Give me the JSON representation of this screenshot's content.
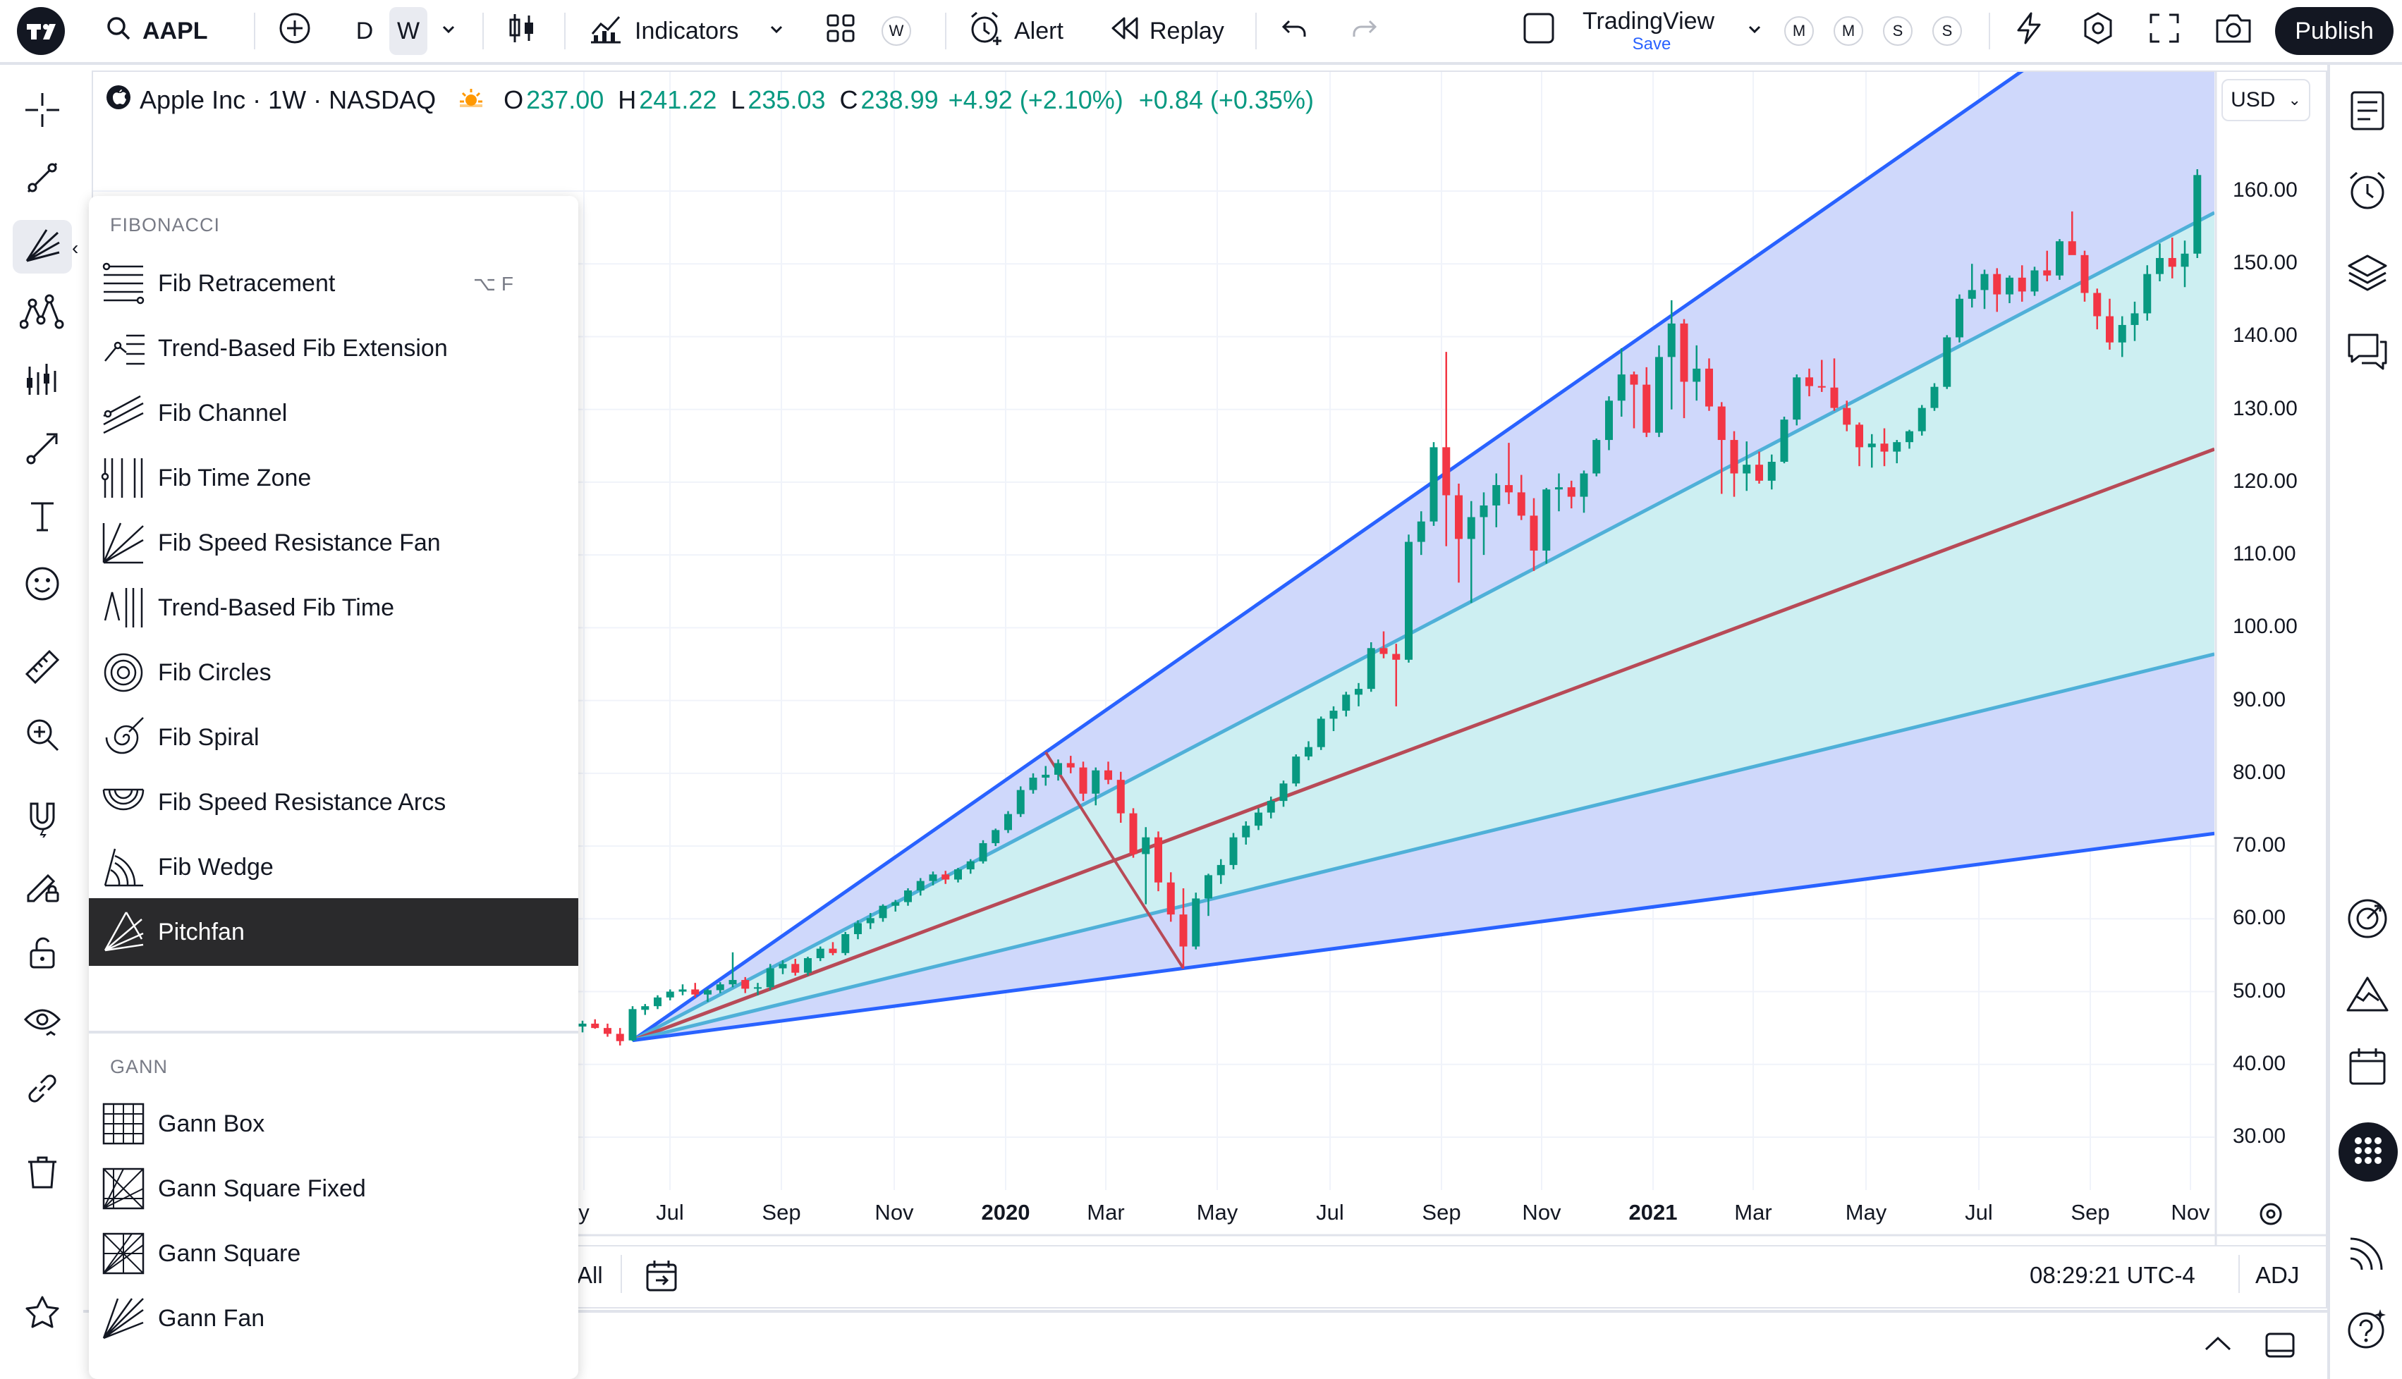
{
  "toolbar": {
    "symbol": "AAPL",
    "interval_d": "D",
    "interval_w": "W",
    "indicators_label": "Indicators",
    "templates_badge": "W",
    "alert_label": "Alert",
    "replay_label": "Replay",
    "layout_name": "TradingView",
    "layout_save": "Save",
    "watch_m1": "M",
    "watch_m2": "M",
    "watch_s1": "S",
    "watch_s2": "S",
    "publish_label": "Publish"
  },
  "legend": {
    "title": "Apple Inc · 1W · NASDAQ",
    "o_key": "O",
    "o": "237.00",
    "h_key": "H",
    "h": "241.22",
    "l_key": "L",
    "l": "235.03",
    "c_key": "C",
    "c": "238.99",
    "change": "+4.92 (+2.10%)",
    "change2": "+0.84 (+0.35%)"
  },
  "currency": "USD",
  "menu": {
    "fib_header": "FIBONACCI",
    "gann_header": "GANN",
    "fib_items": [
      {
        "label": "Fib Retracement",
        "shortcut": "⌥ F",
        "icon": "fib-retracement-icon"
      },
      {
        "label": "Trend-Based Fib Extension",
        "icon": "trend-fib-extension-icon"
      },
      {
        "label": "Fib Channel",
        "icon": "fib-channel-icon"
      },
      {
        "label": "Fib Time Zone",
        "icon": "fib-time-zone-icon"
      },
      {
        "label": "Fib Speed Resistance Fan",
        "icon": "fib-speed-fan-icon"
      },
      {
        "label": "Trend-Based Fib Time",
        "icon": "trend-fib-time-icon"
      },
      {
        "label": "Fib Circles",
        "icon": "fib-circles-icon"
      },
      {
        "label": "Fib Spiral",
        "icon": "fib-spiral-icon"
      },
      {
        "label": "Fib Speed Resistance Arcs",
        "icon": "fib-arcs-icon"
      },
      {
        "label": "Fib Wedge",
        "icon": "fib-wedge-icon"
      },
      {
        "label": "Pitchfan",
        "icon": "pitchfan-icon",
        "selected": true
      }
    ],
    "gann_items": [
      {
        "label": "Gann Box",
        "icon": "gann-box-icon"
      },
      {
        "label": "Gann Square Fixed",
        "icon": "gann-square-fixed-icon"
      },
      {
        "label": "Gann Square",
        "icon": "gann-square-icon"
      },
      {
        "label": "Gann Fan",
        "icon": "gann-fan-icon"
      }
    ]
  },
  "price_axis": [
    "160.00",
    "150.00",
    "140.00",
    "130.00",
    "120.00",
    "110.00",
    "100.00",
    "90.00",
    "80.00",
    "70.00",
    "60.00",
    "50.00",
    "40.00",
    "30.00"
  ],
  "time_axis": [
    {
      "label": "y",
      "bold": false
    },
    {
      "label": "Jul",
      "bold": false
    },
    {
      "label": "Sep",
      "bold": false
    },
    {
      "label": "Nov",
      "bold": false
    },
    {
      "label": "2020",
      "bold": true
    },
    {
      "label": "Mar",
      "bold": false
    },
    {
      "label": "May",
      "bold": false
    },
    {
      "label": "Jul",
      "bold": false
    },
    {
      "label": "Sep",
      "bold": false
    },
    {
      "label": "Nov",
      "bold": false
    },
    {
      "label": "2021",
      "bold": true
    },
    {
      "label": "Mar",
      "bold": false
    },
    {
      "label": "May",
      "bold": false
    },
    {
      "label": "Jul",
      "bold": false
    },
    {
      "label": "Sep",
      "bold": false
    },
    {
      "label": "Nov",
      "bold": false
    }
  ],
  "bottom": {
    "range_all": "All",
    "clock": "08:29:21 UTC-4",
    "adj": "ADJ"
  },
  "colors": {
    "up": "#089981",
    "down": "#f23645",
    "fan_outer": "#2962ff",
    "fan_mid": "#4fb0d8",
    "fan_median": "#b84a57",
    "fill_outer": "#cfd8fb",
    "fill_inner": "#cdeff2"
  },
  "chart_data": {
    "type": "candlestick",
    "symbol": "AAPL",
    "interval": "1W",
    "ylim": [
      27,
      172
    ],
    "candles": [
      [
        45.2,
        46.0,
        44.4,
        45.6
      ],
      [
        45.6,
        46.2,
        44.9,
        45.0
      ],
      [
        45.0,
        45.6,
        43.8,
        44.2
      ],
      [
        44.2,
        45.0,
        42.6,
        43.2
      ],
      [
        43.3,
        48.0,
        43.2,
        47.6
      ],
      [
        47.5,
        48.3,
        46.8,
        48.0
      ],
      [
        48.0,
        49.5,
        47.6,
        49.2
      ],
      [
        49.2,
        50.3,
        48.8,
        50.0
      ],
      [
        50.0,
        51.0,
        49.5,
        50.3
      ],
      [
        50.3,
        51.2,
        49.2,
        49.6
      ],
      [
        49.6,
        50.4,
        48.6,
        50.2
      ],
      [
        50.2,
        51.3,
        49.8,
        51.0
      ],
      [
        51.0,
        55.4,
        50.6,
        51.6
      ],
      [
        51.6,
        52.0,
        49.8,
        50.4
      ],
      [
        50.4,
        51.2,
        49.5,
        50.6
      ],
      [
        50.6,
        53.8,
        50.2,
        53.2
      ],
      [
        53.2,
        54.3,
        52.4,
        53.8
      ],
      [
        53.8,
        54.5,
        52.2,
        52.6
      ],
      [
        52.6,
        54.8,
        52.2,
        54.6
      ],
      [
        54.6,
        56.2,
        54.2,
        55.9
      ],
      [
        55.9,
        56.8,
        55.0,
        55.3
      ],
      [
        55.3,
        58.2,
        55.0,
        57.9
      ],
      [
        57.9,
        59.8,
        57.2,
        59.4
      ],
      [
        59.4,
        60.8,
        58.6,
        60.1
      ],
      [
        60.1,
        62.0,
        59.6,
        61.8
      ],
      [
        61.8,
        62.6,
        61.0,
        62.3
      ],
      [
        62.3,
        64.2,
        61.8,
        63.9
      ],
      [
        63.9,
        65.6,
        63.2,
        65.2
      ],
      [
        65.2,
        66.5,
        64.6,
        66.1
      ],
      [
        66.1,
        66.6,
        64.8,
        65.4
      ],
      [
        65.4,
        67.0,
        65.0,
        66.8
      ],
      [
        66.8,
        68.2,
        66.2,
        67.9
      ],
      [
        67.9,
        70.8,
        67.6,
        70.4
      ],
      [
        70.4,
        72.4,
        70.0,
        72.2
      ],
      [
        72.2,
        74.8,
        71.8,
        74.4
      ],
      [
        74.4,
        78.2,
        74.0,
        77.7
      ],
      [
        77.7,
        80.0,
        77.2,
        79.4
      ],
      [
        79.4,
        81.0,
        78.3,
        79.8
      ],
      [
        79.8,
        81.9,
        79.0,
        81.4
      ],
      [
        81.4,
        82.4,
        80.0,
        80.8
      ],
      [
        80.8,
        81.6,
        76.2,
        77.2
      ],
      [
        77.2,
        80.8,
        75.6,
        80.4
      ],
      [
        80.4,
        81.6,
        78.5,
        79.1
      ],
      [
        79.1,
        80.2,
        73.2,
        74.5
      ],
      [
        74.5,
        75.2,
        68.4,
        68.9
      ],
      [
        68.9,
        72.6,
        62.0,
        71.2
      ],
      [
        71.2,
        72.0,
        63.8,
        65.0
      ],
      [
        65.0,
        66.4,
        59.6,
        60.6
      ],
      [
        60.6,
        64.2,
        53.2,
        56.2
      ],
      [
        56.2,
        63.6,
        55.8,
        62.8
      ],
      [
        62.8,
        66.2,
        60.4,
        66.0
      ],
      [
        66.0,
        68.2,
        64.8,
        67.4
      ],
      [
        67.4,
        71.8,
        66.8,
        71.2
      ],
      [
        71.2,
        73.4,
        70.2,
        72.8
      ],
      [
        72.8,
        75.2,
        72.2,
        74.6
      ],
      [
        74.6,
        76.8,
        73.8,
        76.2
      ],
      [
        76.2,
        79.0,
        75.4,
        78.6
      ],
      [
        78.6,
        82.6,
        78.2,
        82.3
      ],
      [
        82.3,
        84.4,
        81.8,
        83.6
      ],
      [
        83.6,
        87.8,
        83.2,
        87.5
      ],
      [
        87.5,
        89.2,
        85.8,
        88.6
      ],
      [
        88.6,
        91.2,
        87.8,
        90.8
      ],
      [
        90.8,
        92.4,
        89.2,
        91.6
      ],
      [
        91.6,
        98.0,
        91.2,
        97.2
      ],
      [
        97.2,
        99.5,
        95.8,
        96.4
      ],
      [
        96.4,
        97.8,
        89.2,
        95.6
      ],
      [
        95.6,
        112.8,
        95.2,
        111.8
      ],
      [
        111.8,
        116.0,
        110.0,
        114.6
      ],
      [
        114.6,
        125.5,
        114.0,
        124.8
      ],
      [
        124.8,
        137.9,
        111.2,
        118.2
      ],
      [
        118.2,
        119.8,
        106.2,
        112.2
      ],
      [
        112.2,
        117.4,
        103.4,
        115.2
      ],
      [
        115.2,
        118.6,
        110.0,
        116.8
      ],
      [
        116.8,
        121.2,
        113.8,
        119.6
      ],
      [
        119.6,
        125.4,
        117.0,
        118.6
      ],
      [
        118.6,
        121.0,
        114.8,
        115.4
      ],
      [
        115.4,
        117.8,
        107.8,
        110.6
      ],
      [
        110.6,
        119.2,
        108.8,
        119.0
      ],
      [
        119.0,
        121.2,
        116.0,
        119.3
      ],
      [
        119.3,
        120.2,
        116.4,
        118.0
      ],
      [
        118.0,
        121.6,
        115.8,
        121.2
      ],
      [
        121.2,
        126.0,
        120.8,
        125.8
      ],
      [
        125.8,
        131.8,
        124.4,
        131.2
      ],
      [
        131.2,
        138.4,
        129.0,
        134.8
      ],
      [
        134.8,
        135.2,
        127.4,
        133.4
      ],
      [
        133.4,
        135.8,
        126.2,
        126.8
      ],
      [
        126.8,
        138.8,
        126.2,
        137.2
      ],
      [
        137.2,
        145.0,
        130.0,
        141.8
      ],
      [
        141.8,
        142.4,
        128.8,
        133.8
      ],
      [
        133.8,
        138.8,
        131.2,
        135.6
      ],
      [
        135.6,
        137.0,
        129.8,
        130.4
      ],
      [
        130.4,
        131.0,
        118.4,
        125.8
      ],
      [
        125.8,
        127.0,
        118.0,
        121.2
      ],
      [
        121.2,
        125.6,
        118.8,
        122.4
      ],
      [
        122.4,
        124.2,
        119.8,
        120.2
      ],
      [
        120.2,
        123.8,
        119.0,
        122.8
      ],
      [
        122.8,
        129.0,
        122.6,
        128.6
      ],
      [
        128.6,
        134.8,
        127.8,
        134.4
      ],
      [
        134.4,
        135.6,
        131.8,
        133.2
      ],
      [
        133.2,
        136.8,
        132.4,
        133.0
      ],
      [
        133.0,
        137.0,
        129.8,
        130.2
      ],
      [
        130.2,
        131.2,
        127.0,
        127.9
      ],
      [
        127.9,
        128.2,
        122.2,
        124.8
      ],
      [
        124.8,
        126.6,
        122.0,
        125.3
      ],
      [
        125.3,
        127.4,
        122.2,
        124.2
      ],
      [
        124.2,
        125.8,
        122.6,
        125.5
      ],
      [
        125.5,
        127.2,
        124.6,
        127.0
      ],
      [
        127.0,
        130.6,
        126.4,
        130.2
      ],
      [
        130.2,
        133.6,
        129.8,
        133.1
      ],
      [
        133.1,
        140.2,
        132.8,
        139.9
      ],
      [
        139.9,
        145.8,
        139.2,
        145.2
      ],
      [
        145.2,
        150.0,
        144.0,
        146.4
      ],
      [
        146.4,
        149.2,
        143.8,
        148.6
      ],
      [
        148.6,
        149.4,
        143.4,
        145.8
      ],
      [
        145.8,
        148.4,
        144.6,
        148.1
      ],
      [
        148.1,
        149.8,
        144.8,
        146.2
      ],
      [
        146.2,
        149.6,
        145.6,
        149.1
      ],
      [
        149.1,
        151.8,
        147.6,
        148.4
      ],
      [
        148.4,
        153.4,
        147.8,
        153.1
      ],
      [
        153.1,
        157.2,
        151.8,
        151.2
      ],
      [
        151.2,
        151.8,
        144.8,
        146.0
      ],
      [
        146.0,
        146.6,
        141.0,
        142.8
      ],
      [
        142.8,
        145.2,
        138.2,
        139.2
      ],
      [
        139.2,
        142.8,
        137.2,
        141.6
      ],
      [
        141.6,
        144.8,
        139.4,
        143.2
      ],
      [
        143.2,
        149.8,
        142.2,
        148.6
      ],
      [
        148.6,
        152.8,
        147.6,
        150.8
      ],
      [
        150.8,
        153.6,
        148.0,
        149.6
      ],
      [
        149.6,
        153.2,
        146.8,
        151.4
      ],
      [
        151.4,
        163.0,
        150.8,
        162.2
      ]
    ],
    "pitchfan": {
      "origin": {
        "index": 4,
        "price": 43.3
      },
      "point_a": {
        "index": 37,
        "price": 82.9
      },
      "point_b": {
        "index": 48,
        "price": 53.2
      },
      "levels": [
        0.0,
        0.25,
        0.5,
        0.75,
        1.0
      ]
    }
  }
}
